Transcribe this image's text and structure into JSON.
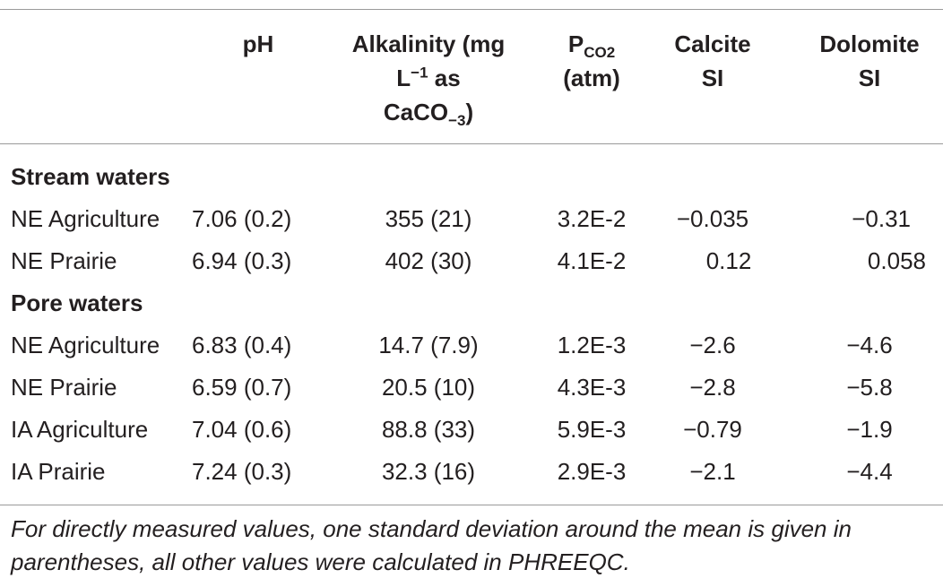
{
  "table": {
    "headers": {
      "ph": "pH",
      "alk_1": "Alkalinity (mg",
      "alk_2a": "L",
      "alk_2sup": "−1",
      "alk_2b": " as",
      "alk_3a": "CaCO",
      "alk_3sub": "−3",
      "alk_3b": ")",
      "pco2_main": "P",
      "pco2_sub": "CO2",
      "pco2_unit": "(atm)",
      "calcite_1": "Calcite",
      "calcite_2": "SI",
      "dolomite_1": "Dolomite",
      "dolomite_2": "SI"
    },
    "sections": [
      {
        "title": "Stream waters",
        "rows": [
          {
            "site": "NE Agriculture",
            "ph": "7.06 (0.2)",
            "alkalinity": "355 (21)",
            "pco2": "3.2E-2",
            "calcite_si": "−0.035",
            "dolomite_si": "−0.31"
          },
          {
            "site": "NE Prairie",
            "ph": "6.94 (0.3)",
            "alkalinity": "402 (30)",
            "pco2": "4.1E-2",
            "calcite_si": "0.12",
            "dolomite_si": "0.058"
          }
        ]
      },
      {
        "title": "Pore waters",
        "rows": [
          {
            "site": "NE Agriculture",
            "ph": "6.83 (0.4)",
            "alkalinity": "14.7 (7.9)",
            "pco2": "1.2E-3",
            "calcite_si": "−2.6",
            "dolomite_si": "−4.6"
          },
          {
            "site": "NE Prairie",
            "ph": "6.59 (0.7)",
            "alkalinity": "20.5 (10)",
            "pco2": "4.3E-3",
            "calcite_si": "−2.8",
            "dolomite_si": "−5.8"
          },
          {
            "site": "IA Agriculture",
            "ph": "7.04 (0.6)",
            "alkalinity": "88.8 (33)",
            "pco2": "5.9E-3",
            "calcite_si": "−0.79",
            "dolomite_si": "−1.9"
          },
          {
            "site": "IA Prairie",
            "ph": "7.24 (0.3)",
            "alkalinity": "32.3 (16)",
            "pco2": "2.9E-3",
            "calcite_si": "−2.1",
            "dolomite_si": "−4.4"
          }
        ]
      }
    ],
    "footnote": "For directly measured values, one standard deviation around the mean is given in parentheses, all other values were calculated in PHREEQC."
  }
}
